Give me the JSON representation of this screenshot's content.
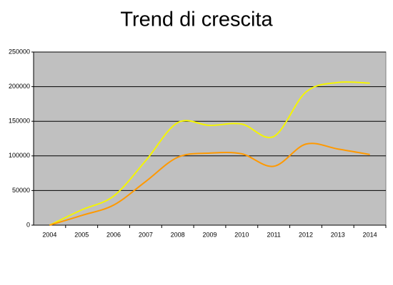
{
  "chart_data": {
    "type": "line",
    "title": "Trend di crescita",
    "categories": [
      "2004",
      "2005",
      "2006",
      "2007",
      "2008",
      "2009",
      "2010",
      "2011",
      "2012",
      "2013",
      "2014"
    ],
    "series": [
      {
        "color": "#f5f500",
        "values": [
          0,
          22000,
          42000,
          93000,
          148000,
          144000,
          146000,
          128000,
          192000,
          206000,
          205000
        ]
      },
      {
        "color": "#ff9900",
        "values": [
          0,
          14000,
          29000,
          63000,
          98000,
          104000,
          103000,
          85000,
          117000,
          110000,
          102000
        ]
      }
    ],
    "ylim": [
      0,
      250000
    ],
    "yticks": [
      0,
      50000,
      100000,
      150000,
      200000,
      250000
    ],
    "grid": true,
    "smooth": true
  }
}
